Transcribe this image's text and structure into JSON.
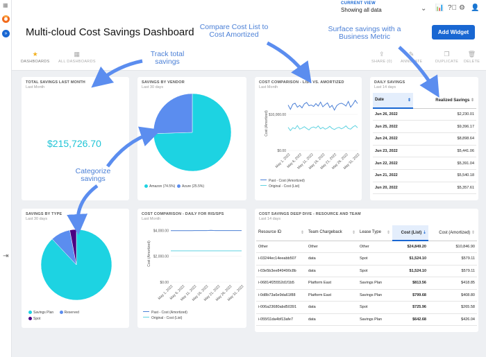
{
  "header": {
    "current_view_label": "CURRENT VIEW",
    "current_view_value": "Showing all data",
    "title": "Multi-cloud Cost Savings Dashboard",
    "add_widget": "Add Widget"
  },
  "toolbar": {
    "dashboards": "DASHBOARDS",
    "all_dashboards": "ALL DASHBOARDS",
    "share": "SHARE (0)",
    "annotate": "ANNOTATE",
    "duplicate": "DUPLICATE",
    "delete": "DELETE"
  },
  "callouts": {
    "track": "Track total savings",
    "categorize": "Categorize savings",
    "compare": "Compare Cost List to Cost Amortized",
    "surface": "Surface savings with a Business Metric"
  },
  "total_savings": {
    "title": "TOTAL SAVINGS LAST MONTH",
    "subtitle": "Last Month",
    "value": "$215,726.70"
  },
  "savings_by_vendor": {
    "title": "SAVINGS BY VENDOR",
    "subtitle": "Last 30 days",
    "legend": [
      "Amazon (74.5%)",
      "Azure (25.5%)"
    ]
  },
  "cost_comparison_list": {
    "title": "COST COMPARISON - LIST VS. AMORTIZED",
    "subtitle": "Last Month",
    "ylabel": "Cost (Amortized)",
    "yticks": [
      "$10,000.00",
      "$0.00"
    ],
    "xticks": [
      "May 1, 2022",
      "May 6, 2022",
      "May 11, 2022",
      "May 16, 2022",
      "May 21, 2022",
      "May 26, 2022",
      "May 31, 2022"
    ],
    "legend": [
      "Past - Cost (Amortized)",
      "Original - Cost (List)"
    ]
  },
  "daily_savings": {
    "title": "DAILY SAVINGS",
    "subtitle": "Last 14 days",
    "columns": [
      "Date",
      "Realized Savings"
    ],
    "rows": [
      [
        "Jun 26, 2022",
        "$2,230.01"
      ],
      [
        "Jun 25, 2022",
        "$9,396.17"
      ],
      [
        "Jun 24, 2022",
        "$8,898.64"
      ],
      [
        "Jun 23, 2022",
        "$5,441.06"
      ],
      [
        "Jun 22, 2022",
        "$5,391.04"
      ],
      [
        "Jun 21, 2022",
        "$5,540.18"
      ],
      [
        "Jun 20, 2022",
        "$5,357.61"
      ]
    ]
  },
  "savings_by_type": {
    "title": "SAVINGS BY TYPE",
    "subtitle": "Last 30 days",
    "legend": [
      "Savings Plan",
      "Reserved",
      "Spot"
    ]
  },
  "cost_comparison_daily": {
    "title": "COST COMPARISON - DAILY FOR RIS/SPS",
    "subtitle": "Last Month",
    "ylabel": "Cost (Amortized)",
    "yticks": [
      "$4,000.00",
      "$2,000.00",
      "$0.00"
    ],
    "xticks": [
      "May 1, 2022",
      "May 6, 2022",
      "May 11, 2022",
      "May 16, 2022",
      "May 21, 2022",
      "May 26, 2022",
      "May 31, 2022"
    ],
    "legend": [
      "Past - Cost (Amortized)",
      "Original - Cost (List)"
    ]
  },
  "deep_dive": {
    "title": "COST SAVINGS DEEP DIVE - RESOURCE AND TEAM",
    "subtitle": "Last 14 days",
    "columns": [
      "Resource ID",
      "Team Chargeback",
      "Lease Type",
      "Cost (List)",
      "Cost (Amortized)"
    ],
    "rows": [
      [
        "Other",
        "Other",
        "Other",
        "$24,849.20",
        "$10,846.90"
      ],
      [
        "i-03244ec14eeabb507",
        "data",
        "Spot",
        "$1,524.10",
        "$579.11"
      ],
      [
        "i-03e5b3ee849490c8b",
        "data",
        "Spot",
        "$1,524.10",
        "$579.11"
      ],
      [
        "i-06814f25552d1f1b5",
        "Platform East",
        "Savings Plan",
        "$813.56",
        "$418.85"
      ],
      [
        "i-0d8b73a6e9da61f88",
        "Platform East",
        "Savings Plan",
        "$799.68",
        "$408.80"
      ],
      [
        "i-006a23680abd50391",
        "data",
        "Spot",
        "$725.96",
        "$265.58"
      ],
      [
        "i-055f11da4bf13afe7",
        "data",
        "Savings Plan",
        "$642.68",
        "$426.04"
      ]
    ]
  },
  "chart_data": [
    {
      "type": "pie",
      "title": "SAVINGS BY VENDOR",
      "labels": [
        "Amazon",
        "Azure"
      ],
      "values": [
        74.5,
        25.5
      ],
      "colors": [
        "#1dd3e2",
        "#5b8def"
      ]
    },
    {
      "type": "pie",
      "title": "SAVINGS BY TYPE",
      "labels": [
        "Savings Plan",
        "Reserved",
        "Spot"
      ],
      "values": [
        88,
        9,
        3
      ],
      "colors": [
        "#1dd3e2",
        "#5b8def",
        "#4b0082"
      ]
    },
    {
      "type": "line",
      "title": "COST COMPARISON - LIST VS. AMORTIZED",
      "ylabel": "Cost (Amortized)",
      "ylim": [
        0,
        15000
      ],
      "x": [
        1,
        2,
        3,
        4,
        5,
        6,
        7,
        8,
        9,
        10,
        11,
        12,
        13,
        14,
        15,
        16,
        17,
        18,
        19,
        20,
        21,
        22,
        23,
        24,
        25,
        26,
        27,
        28,
        29,
        30,
        31
      ],
      "series": [
        {
          "name": "Past - Cost (Amortized)",
          "color": "#4a7fd6",
          "values": [
            12600,
            11400,
            12800,
            13100,
            12000,
            12500,
            11800,
            12900,
            13300,
            12400,
            12600,
            12200,
            13000,
            12300,
            13400,
            12100,
            12700,
            13200,
            11900,
            12500,
            11200,
            12400,
            12900,
            13100,
            12800,
            12300,
            13600,
            12000,
            12800,
            13900,
            13000
          ]
        },
        {
          "name": "Original - Cost (List)",
          "color": "#5fd2e0",
          "values": [
            6400,
            5500,
            6300,
            6000,
            6900,
            5900,
            6200,
            6600,
            6100,
            5700,
            6300,
            6500,
            6200,
            6800,
            6000,
            6400,
            5900,
            6200,
            6700,
            6100,
            5800,
            6200,
            6400,
            6000,
            6300,
            6800,
            6100,
            5900,
            6500,
            6900,
            6300
          ]
        }
      ]
    },
    {
      "type": "line",
      "title": "COST COMPARISON - DAILY FOR RIS/SPS",
      "ylabel": "Cost (Amortized)",
      "ylim": [
        0,
        4400
      ],
      "x": [
        1,
        2,
        3,
        4,
        5,
        6,
        7,
        8,
        9,
        10,
        11,
        12,
        13,
        14,
        15,
        16,
        17,
        18,
        19,
        20,
        21,
        22,
        23,
        24,
        25,
        26,
        27,
        28,
        29,
        30,
        31
      ],
      "series": [
        {
          "name": "Past - Cost (Amortized)",
          "color": "#4a7fd6",
          "values": [
            3980,
            3980,
            3980,
            3980,
            3980,
            3980,
            3980,
            3980,
            3980,
            3980,
            3990,
            3990,
            3990,
            3990,
            3990,
            3990,
            4000,
            4010,
            4000,
            3990,
            3990,
            3990,
            3990,
            3990,
            3990,
            3990,
            3990,
            3990,
            3990,
            3990,
            3990
          ]
        },
        {
          "name": "Original - Cost (List)",
          "color": "#5fd2e0",
          "values": [
            2420,
            2420,
            2420,
            2420,
            2420,
            2420,
            2420,
            2420,
            2420,
            2420,
            2420,
            2420,
            2420,
            2420,
            2420,
            2420,
            2420,
            2420,
            2420,
            2420,
            2420,
            2420,
            2420,
            2420,
            2420,
            2420,
            2420,
            2420,
            2420,
            2420,
            2420
          ]
        }
      ]
    }
  ]
}
